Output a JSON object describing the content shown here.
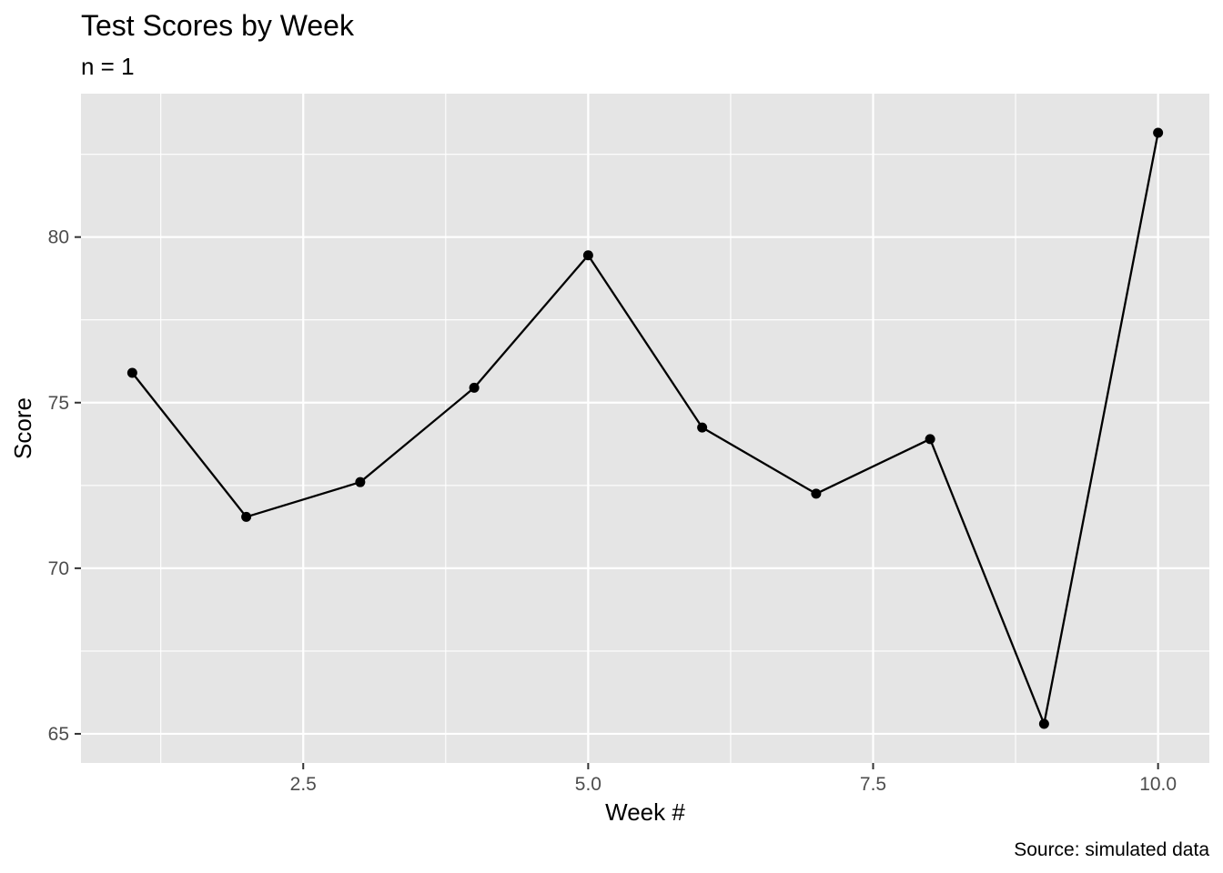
{
  "chart_data": {
    "type": "line",
    "title": "Test Scores by Week",
    "subtitle": "n = 1",
    "caption": "Source: simulated data",
    "xlabel": "Week #",
    "ylabel": "Score",
    "x": [
      1,
      2,
      3,
      4,
      5,
      6,
      7,
      8,
      9,
      10
    ],
    "series": [
      {
        "values": [
          75.9,
          71.55,
          72.6,
          75.45,
          79.45,
          74.25,
          72.25,
          73.9,
          65.3,
          83.15
        ]
      }
    ],
    "xlim": [
      0.55,
      10.45
    ],
    "ylim": [
      64.12,
      84.33
    ],
    "x_ticks": [
      2.5,
      5.0,
      7.5,
      10.0
    ],
    "x_tick_labels": [
      "2.5",
      "5.0",
      "7.5",
      "10.0"
    ],
    "y_ticks": [
      65,
      70,
      75,
      80
    ],
    "y_tick_labels": [
      "65",
      "70",
      "75",
      "80"
    ],
    "grid": true,
    "panel_color": "#e5e5e5",
    "grid_color": "#ffffff",
    "line_color": "#000000",
    "point_color": "#000000"
  }
}
